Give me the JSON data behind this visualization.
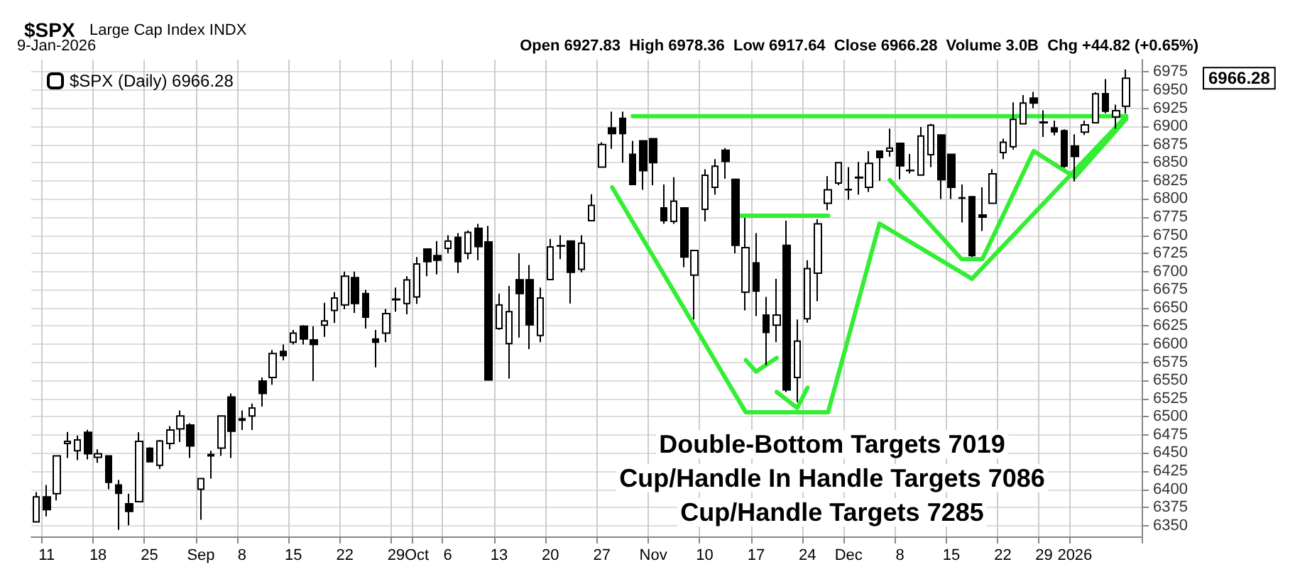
{
  "chart_data": {
    "type": "candlestick",
    "title": "$SPX",
    "subtitle": "Large Cap Index INDX",
    "annotations": [
      "9-Jan-2026",
      "Open 6927.83  High 6978.36  Low 6917.64  Close 6966.28  Volume 3.0B  Chg +44.82 (+0.65%)",
      "Double-Bottom Targets 7019",
      "Cup/Handle In Handle Targets 7086",
      "Cup/Handle Targets 7285",
      "6966.28"
    ],
    "categories": [
      null,
      "11",
      null,
      null,
      null,
      null,
      "18",
      null,
      null,
      null,
      null,
      "25",
      null,
      null,
      null,
      null,
      "Sep",
      null,
      null,
      null,
      "8",
      null,
      null,
      null,
      null,
      "15",
      null,
      null,
      null,
      null,
      "22",
      null,
      null,
      null,
      null,
      "29",
      null,
      "Oct",
      null,
      null,
      "6",
      null,
      null,
      null,
      null,
      "13",
      null,
      null,
      null,
      null,
      "20",
      null,
      null,
      null,
      null,
      "27",
      null,
      null,
      null,
      null,
      "Nov",
      null,
      null,
      null,
      null,
      "10",
      null,
      null,
      null,
      null,
      "17",
      null,
      null,
      null,
      null,
      "24",
      null,
      null,
      null,
      "Dec",
      null,
      null,
      null,
      null,
      "8",
      null,
      null,
      null,
      null,
      "15",
      null,
      null,
      null,
      null,
      "22",
      null,
      null,
      null,
      "29",
      null,
      null,
      "2026",
      null,
      null,
      null,
      null,
      null
    ],
    "ylim": [
      6335,
      6992
    ],
    "yticks": [
      6350,
      6375,
      6400,
      6425,
      6450,
      6475,
      6500,
      6525,
      6550,
      6575,
      6600,
      6625,
      6650,
      6675,
      6700,
      6725,
      6750,
      6775,
      6800,
      6825,
      6850,
      6875,
      6900,
      6925,
      6950,
      6975
    ],
    "grid": true,
    "legend": "top left",
    "line_style": "solid",
    "series": [
      {
        "name": "$SPX (Daily) 6966.28",
        "color": "#000000",
        "ohlc": [
          [
            6355,
            6396,
            6355,
            6389.5
          ],
          [
            6389.5,
            6406,
            6362.5,
            6372
          ],
          [
            6394,
            6446,
            6384.5,
            6446
          ],
          [
            6463,
            6479,
            6443,
            6466
          ],
          [
            6453,
            6474,
            6440,
            6468
          ],
          [
            6478.5,
            6482,
            6441,
            6449
          ],
          [
            6444,
            6455,
            6436.5,
            6449
          ],
          [
            6446,
            6446,
            6400,
            6409.5
          ],
          [
            6406,
            6413,
            6344,
            6394.5
          ],
          [
            6380,
            6394,
            6350.5,
            6369.5
          ],
          [
            6383,
            6478.5,
            6383,
            6466
          ],
          [
            6456.5,
            6458,
            6437,
            6438
          ],
          [
            6433,
            6468,
            6428,
            6466.6
          ],
          [
            6463,
            6487,
            6455,
            6481.7
          ],
          [
            6483,
            6508.6,
            6465,
            6501
          ],
          [
            6488.6,
            6491,
            6443,
            6459.7
          ],
          [
            6400,
            6414.6,
            6358,
            6414.6
          ],
          [
            6446,
            6453,
            6414.6,
            6448
          ],
          [
            6456.6,
            6501,
            6446,
            6501
          ],
          [
            6527,
            6532,
            6443,
            6480
          ],
          [
            6497,
            6508.6,
            6481.7,
            6495
          ],
          [
            6501,
            6518,
            6481.7,
            6512
          ],
          [
            6549,
            6554,
            6514,
            6532
          ],
          [
            6554,
            6592,
            6544,
            6587
          ],
          [
            6590,
            6599.5,
            6577.6,
            6584
          ],
          [
            6602.7,
            6619.6,
            6599.5,
            6615
          ],
          [
            6624.6,
            6626,
            6599.5,
            6607
          ],
          [
            6605.8,
            6624.6,
            6549,
            6599.5
          ],
          [
            6626,
            6657,
            6610,
            6632
          ],
          [
            6646.5,
            6671.6,
            6629,
            6663.5
          ],
          [
            6654,
            6700,
            6648,
            6693.6
          ],
          [
            6691.7,
            6700,
            6643,
            6656
          ],
          [
            6669.7,
            6674.8,
            6621.5,
            6637
          ],
          [
            6607,
            6619.6,
            6568,
            6602.7
          ],
          [
            6615,
            6648.4,
            6602.7,
            6642
          ],
          [
            6661,
            6678,
            6644.6,
            6662
          ],
          [
            6656,
            6693.6,
            6641,
            6688.5
          ],
          [
            6665,
            6720,
            6655.5,
            6710.5
          ],
          [
            6731,
            6731,
            6693.6,
            6713.6
          ],
          [
            6722,
            6742,
            6696,
            6715.5
          ],
          [
            6732,
            6750,
            6725,
            6742
          ],
          [
            6747,
            6753,
            6698,
            6713.6
          ],
          [
            6725,
            6756.7,
            6717,
            6754
          ],
          [
            6759.5,
            6765.7,
            6715.5,
            6734.5
          ],
          [
            6740.8,
            6763,
            6550.6,
            6550.6
          ],
          [
            6621.5,
            6669.7,
            6619.6,
            6654
          ],
          [
            6600.8,
            6680,
            6552.5,
            6644.7
          ],
          [
            6688.6,
            6725,
            6609,
            6669.7
          ],
          [
            6688.6,
            6709,
            6593,
            6626.5
          ],
          [
            6612,
            6678,
            6602.7,
            6663.5
          ],
          [
            6689,
            6745,
            6689,
            6734
          ],
          [
            6735,
            6750,
            6717,
            6735.5
          ],
          [
            6742,
            6742,
            6656,
            6699
          ],
          [
            6703,
            6750,
            6699,
            6739
          ],
          [
            6770,
            6806.6,
            6770,
            6791
          ],
          [
            6844,
            6878,
            6843,
            6875
          ],
          [
            6898,
            6920.5,
            6869,
            6890
          ],
          [
            6911,
            6920.5,
            6850,
            6890
          ],
          [
            6861.6,
            6880,
            6820,
            6820
          ],
          [
            6880,
            6880,
            6812.7,
            6839
          ],
          [
            6883,
            6883,
            6818.9,
            6850
          ],
          [
            6787.6,
            6820,
            6765.7,
            6770
          ],
          [
            6769,
            6830,
            6765.7,
            6797
          ],
          [
            6787.6,
            6787.6,
            6706,
            6720
          ],
          [
            6695,
            6729,
            6634,
            6729
          ],
          [
            6785.6,
            6841,
            6769,
            6832.7
          ],
          [
            6816,
            6855,
            6806,
            6845
          ],
          [
            6867,
            6870,
            6828,
            6851.6
          ],
          [
            6827,
            6827,
            6725,
            6736
          ],
          [
            6671.6,
            6774,
            6646.5,
            6733
          ],
          [
            6712,
            6753,
            6638.5,
            6673
          ],
          [
            6640,
            6665,
            6571,
            6616
          ],
          [
            6626,
            6690,
            6602.7,
            6640
          ],
          [
            6736,
            6770,
            6534,
            6537
          ],
          [
            6554,
            6634,
            6520,
            6604
          ],
          [
            6635,
            6715.5,
            6629.6,
            6704
          ],
          [
            6697.8,
            6772,
            6659,
            6765.7
          ],
          [
            6794,
            6831.5,
            6784.5,
            6812.7
          ],
          [
            6822,
            6850,
            6819,
            6850
          ],
          [
            6812.7,
            6844,
            6799,
            6813
          ],
          [
            6829,
            6851,
            6806,
            6830
          ],
          [
            6816,
            6866,
            6809.6,
            6849
          ],
          [
            6866,
            6866,
            6825,
            6857
          ],
          [
            6866,
            6897,
            6858,
            6870
          ],
          [
            6876.6,
            6876.6,
            6827,
            6845.7
          ],
          [
            6839.6,
            6862,
            6835,
            6839
          ],
          [
            6833,
            6899,
            6833,
            6886.7
          ],
          [
            6861,
            6903.6,
            6844,
            6901.6
          ],
          [
            6888,
            6888,
            6800,
            6826.6
          ],
          [
            6861.6,
            6861.6,
            6800,
            6816
          ],
          [
            6801.6,
            6820,
            6767.6,
            6801
          ],
          [
            6803,
            6803,
            6720,
            6722
          ],
          [
            6778,
            6816,
            6756,
            6775
          ],
          [
            6794,
            6841,
            6794,
            6834.6
          ],
          [
            6864,
            6883,
            6855,
            6878
          ],
          [
            6872,
            6933,
            6868,
            6909.6
          ],
          [
            6903.4,
            6943,
            6903,
            6932
          ],
          [
            6939,
            6947.5,
            6925,
            6932
          ],
          [
            6906,
            6922,
            6885.5,
            6905
          ],
          [
            6898,
            6908,
            6887.6,
            6892.4
          ],
          [
            6894,
            6896,
            6843,
            6845
          ],
          [
            6873,
            6889,
            6824,
            6858.5
          ],
          [
            6892,
            6908,
            6888,
            6902
          ],
          [
            6905,
            6947,
            6904,
            6944.8
          ],
          [
            6945,
            6965,
            6918,
            6920.9
          ],
          [
            6913,
            6930,
            6897,
            6921.5
          ],
          [
            6927.83,
            6978.36,
            6917.64,
            6966.28
          ]
        ]
      },
      {
        "type": "line",
        "color": "#33ee33",
        "values": [
          null,
          null,
          null,
          null,
          null,
          null,
          null,
          null,
          null,
          null,
          null,
          null,
          null,
          null,
          null,
          null,
          null,
          null,
          null,
          null,
          null,
          null,
          null,
          null,
          null,
          null,
          null,
          null,
          null,
          null,
          null,
          null,
          null,
          null,
          null,
          null,
          null,
          null,
          null,
          null,
          null,
          null,
          null,
          null,
          null,
          null,
          null,
          null,
          null,
          null,
          null,
          null,
          null,
          null,
          null,
          null,
          null,
          null,
          6914,
          6914,
          6914,
          6914,
          6914,
          6914,
          6914,
          6914,
          6914,
          6914,
          6914,
          6914,
          6914,
          6914,
          6914,
          6914,
          6914,
          6914,
          6914,
          6914,
          6914,
          6914,
          6914,
          6914,
          6914,
          6914,
          6914,
          6914,
          6914,
          6914,
          6914,
          6914,
          6914,
          6914,
          6914,
          6914,
          6914,
          6914,
          6914,
          6914,
          6914,
          6914,
          6914,
          6914,
          6914,
          6914,
          6914,
          6914,
          6914
        ]
      },
      {
        "type": "line",
        "color": "#33ee33",
        "values": [
          null,
          null,
          null,
          null,
          null,
          null,
          null,
          null,
          null,
          null,
          null,
          null,
          null,
          null,
          null,
          null,
          null,
          null,
          null,
          null,
          null,
          null,
          null,
          null,
          null,
          null,
          null,
          null,
          null,
          null,
          null,
          null,
          null,
          null,
          null,
          null,
          null,
          null,
          null,
          null,
          null,
          null,
          null,
          null,
          null,
          null,
          null,
          null,
          null,
          null,
          null,
          null,
          null,
          null,
          null,
          null,
          6816,
          null,
          null,
          null,
          null,
          null,
          null,
          null,
          null,
          null,
          null,
          null,
          null,
          6506,
          null,
          null,
          null,
          null,
          null,
          null,
          null,
          6506,
          null,
          null,
          null,
          null,
          6766,
          null,
          null,
          null,
          null,
          null,
          null,
          null,
          null,
          6690,
          null,
          null,
          null,
          null,
          null,
          null,
          null,
          null,
          null,
          null,
          null,
          null,
          null,
          null,
          6914
        ]
      },
      {
        "type": "line",
        "color": "#33ee33",
        "values": [
          null,
          null,
          null,
          null,
          null,
          null,
          null,
          null,
          null,
          null,
          null,
          null,
          null,
          null,
          null,
          null,
          null,
          null,
          null,
          null,
          null,
          null,
          null,
          null,
          null,
          null,
          null,
          null,
          null,
          null,
          null,
          null,
          null,
          null,
          null,
          null,
          null,
          null,
          null,
          null,
          null,
          null,
          null,
          null,
          null,
          null,
          null,
          null,
          null,
          null,
          null,
          null,
          null,
          null,
          null,
          null,
          null,
          null,
          null,
          null,
          null,
          null,
          null,
          null,
          null,
          null,
          null,
          null,
          6777,
          null,
          null,
          null,
          null,
          null,
          null,
          null,
          null,
          6777,
          null,
          null,
          null,
          null,
          null,
          null,
          null,
          null,
          null,
          null,
          null,
          null,
          null,
          null,
          null,
          null,
          null,
          null,
          null,
          null,
          null,
          null,
          null,
          null,
          null,
          null,
          null,
          null,
          null
        ]
      },
      {
        "type": "line",
        "color": "#33ee33",
        "values": [
          null,
          null,
          null,
          null,
          null,
          null,
          null,
          null,
          null,
          null,
          null,
          null,
          null,
          null,
          null,
          null,
          null,
          null,
          null,
          null,
          null,
          null,
          null,
          null,
          null,
          null,
          null,
          null,
          null,
          null,
          null,
          null,
          null,
          null,
          null,
          null,
          null,
          null,
          null,
          null,
          null,
          null,
          null,
          null,
          null,
          null,
          null,
          null,
          null,
          null,
          null,
          null,
          null,
          null,
          null,
          null,
          null,
          null,
          null,
          null,
          null,
          null,
          null,
          null,
          null,
          null,
          null,
          null,
          null,
          6578,
          6562,
          null,
          6581,
          null,
          null,
          null,
          null,
          null,
          null,
          null,
          null,
          null,
          null,
          null,
          null,
          null,
          null,
          null,
          null,
          null,
          null,
          null,
          null,
          null,
          null,
          null,
          null,
          null,
          null,
          null,
          null,
          null,
          null,
          null,
          null,
          null,
          null
        ]
      },
      {
        "type": "line",
        "color": "#33ee33",
        "values": [
          null,
          null,
          null,
          null,
          null,
          null,
          null,
          null,
          null,
          null,
          null,
          null,
          null,
          null,
          null,
          null,
          null,
          null,
          null,
          null,
          null,
          null,
          null,
          null,
          null,
          null,
          null,
          null,
          null,
          null,
          null,
          null,
          null,
          null,
          null,
          null,
          null,
          null,
          null,
          null,
          null,
          null,
          null,
          null,
          null,
          null,
          null,
          null,
          null,
          null,
          null,
          null,
          null,
          null,
          null,
          null,
          null,
          null,
          null,
          null,
          null,
          null,
          null,
          null,
          null,
          null,
          null,
          null,
          null,
          null,
          null,
          null,
          6534,
          null,
          6512,
          6540,
          null,
          null,
          null,
          null,
          null,
          null,
          null,
          null,
          null,
          null,
          null,
          null,
          null,
          null,
          null,
          null,
          null,
          null,
          null,
          null,
          null,
          null,
          null,
          null,
          null,
          null,
          null,
          null,
          null,
          null,
          null
        ]
      },
      {
        "type": "line",
        "color": "#33ee33",
        "values": [
          null,
          null,
          null,
          null,
          null,
          null,
          null,
          null,
          null,
          null,
          null,
          null,
          null,
          null,
          null,
          null,
          null,
          null,
          null,
          null,
          null,
          null,
          null,
          null,
          null,
          null,
          null,
          null,
          null,
          null,
          null,
          null,
          null,
          null,
          null,
          null,
          null,
          null,
          null,
          null,
          null,
          null,
          null,
          null,
          null,
          null,
          null,
          null,
          null,
          null,
          null,
          null,
          null,
          null,
          null,
          null,
          null,
          null,
          null,
          null,
          null,
          null,
          null,
          null,
          null,
          null,
          null,
          null,
          null,
          null,
          null,
          null,
          null,
          null,
          null,
          null,
          null,
          null,
          null,
          null,
          null,
          null,
          null,
          6826,
          null,
          null,
          null,
          null,
          null,
          null,
          6717,
          null,
          6717,
          null,
          null,
          null,
          null,
          6866,
          null,
          null,
          null,
          6830,
          null,
          null,
          null,
          null,
          6910
        ]
      },
      {
        "type": "line",
        "color": "#33ee33",
        "values": [
          null,
          null,
          null,
          null,
          null,
          null,
          null,
          null,
          null,
          null,
          null,
          null,
          null,
          null,
          null,
          null,
          null,
          null,
          null,
          null,
          null,
          null,
          null,
          null,
          null,
          null,
          null,
          null,
          null,
          null,
          null,
          null,
          null,
          null,
          null,
          null,
          null,
          null,
          null,
          null,
          null,
          null,
          null,
          null,
          null,
          null,
          null,
          null,
          null,
          null,
          null,
          null,
          null,
          null,
          null,
          null,
          null,
          null,
          null,
          null,
          null,
          null,
          null,
          null,
          null,
          null,
          null,
          null,
          null,
          null,
          null,
          null,
          null,
          null,
          null,
          null,
          null,
          null,
          null,
          null,
          null,
          null,
          null,
          null,
          null,
          null,
          null,
          null,
          null,
          null,
          null,
          null,
          null,
          null,
          null,
          null,
          null,
          null,
          null,
          null,
          null,
          6830,
          null,
          6865,
          null,
          null,
          null
        ]
      }
    ]
  }
}
